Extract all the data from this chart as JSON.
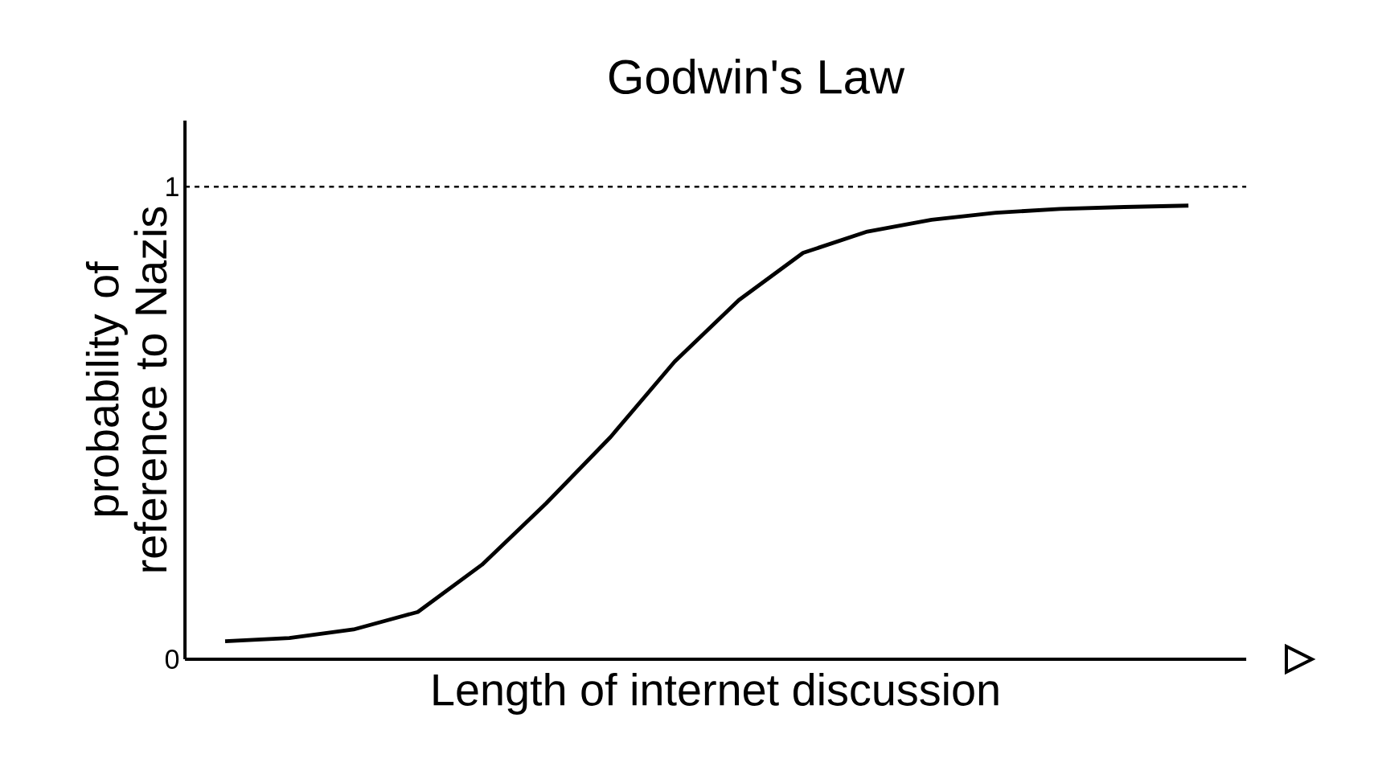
{
  "chart_data": {
    "type": "line",
    "title": "Godwin's Law",
    "xlabel": "Length of internet discussion",
    "ylabel": "probability of reference to Nazis",
    "categories": [
      null,
      null,
      null,
      null,
      null,
      null,
      null,
      null,
      null,
      null,
      null,
      null,
      null,
      null,
      null,
      null
    ],
    "series": [
      {
        "color": "#000000",
        "values": [
          0.038,
          0.045,
          0.063,
          0.1,
          0.2,
          0.33,
          0.47,
          0.63,
          0.76,
          0.86,
          0.905,
          0.93,
          0.945,
          0.953,
          0.957,
          0.96
        ]
      }
    ],
    "ylim": [
      0,
      1.14
    ],
    "yticks": [
      0,
      1
    ],
    "ref_lines": [
      {
        "axis": "y",
        "value": 1,
        "color": "#000000",
        "line_style": "dashed"
      }
    ],
    "marker": "none",
    "line_style": "solid",
    "grid": false
  }
}
